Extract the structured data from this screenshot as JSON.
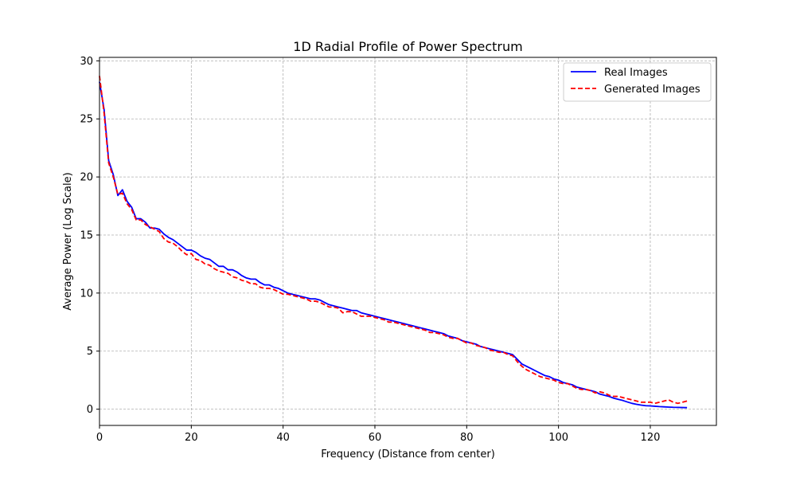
{
  "chart_data": {
    "type": "line",
    "title": "1D Radial Profile of Power Spectrum",
    "xlabel": "Frequency (Distance from center)",
    "ylabel": "Average Power (Log Scale)",
    "xlim": [
      0,
      134.4
    ],
    "ylim": [
      -1.4,
      30.3
    ],
    "xticks": [
      0,
      20,
      40,
      60,
      80,
      100,
      120
    ],
    "yticks": [
      0,
      5,
      10,
      15,
      20,
      25,
      30
    ],
    "grid": true,
    "legend_position": "top-right",
    "series": [
      {
        "name": "Real Images",
        "color": "#0000ff",
        "dash": "solid",
        "x": [
          0,
          1,
          2,
          3,
          4,
          5,
          6,
          7,
          8,
          9,
          10,
          11,
          12,
          13,
          14,
          15,
          16,
          17,
          18,
          19,
          20,
          21,
          22,
          23,
          24,
          25,
          26,
          27,
          28,
          29,
          30,
          31,
          32,
          33,
          34,
          35,
          36,
          37,
          38,
          39,
          40,
          41,
          42,
          43,
          44,
          45,
          46,
          47,
          48,
          49,
          50,
          51,
          52,
          53,
          54,
          55,
          56,
          57,
          58,
          59,
          60,
          61,
          62,
          63,
          64,
          65,
          66,
          67,
          68,
          69,
          70,
          71,
          72,
          73,
          74,
          75,
          76,
          77,
          78,
          79,
          80,
          81,
          82,
          83,
          84,
          85,
          86,
          87,
          88,
          89,
          90,
          91,
          92,
          93,
          94,
          95,
          96,
          97,
          98,
          99,
          100,
          101,
          102,
          103,
          104,
          105,
          106,
          107,
          108,
          109,
          110,
          111,
          112,
          113,
          114,
          115,
          116,
          117,
          118,
          119,
          120,
          121,
          122,
          123,
          124,
          125,
          126,
          127,
          128
        ],
        "y": [
          28.2,
          25.8,
          21.4,
          20.2,
          18.4,
          18.9,
          17.9,
          17.4,
          16.4,
          16.4,
          16.1,
          15.6,
          15.6,
          15.5,
          15.1,
          14.8,
          14.6,
          14.3,
          14.0,
          13.7,
          13.7,
          13.5,
          13.2,
          13.0,
          12.9,
          12.6,
          12.3,
          12.3,
          12.0,
          12.0,
          11.8,
          11.5,
          11.3,
          11.2,
          11.2,
          10.9,
          10.7,
          10.7,
          10.5,
          10.4,
          10.2,
          10.0,
          9.9,
          9.8,
          9.7,
          9.6,
          9.5,
          9.5,
          9.4,
          9.2,
          9.0,
          8.9,
          8.8,
          8.7,
          8.6,
          8.5,
          8.5,
          8.3,
          8.2,
          8.1,
          8.0,
          7.9,
          7.8,
          7.7,
          7.6,
          7.5,
          7.4,
          7.3,
          7.2,
          7.1,
          7.0,
          6.9,
          6.8,
          6.7,
          6.6,
          6.5,
          6.3,
          6.2,
          6.1,
          5.9,
          5.8,
          5.7,
          5.6,
          5.4,
          5.3,
          5.2,
          5.1,
          5.0,
          4.9,
          4.8,
          4.7,
          4.3,
          3.9,
          3.7,
          3.5,
          3.3,
          3.1,
          2.9,
          2.8,
          2.6,
          2.5,
          2.3,
          2.2,
          2.1,
          1.9,
          1.8,
          1.7,
          1.6,
          1.5,
          1.3,
          1.2,
          1.1,
          0.95,
          0.85,
          0.75,
          0.62,
          0.5,
          0.42,
          0.35,
          0.3,
          0.28,
          0.25,
          0.22,
          0.2,
          0.18,
          0.16,
          0.15,
          0.14,
          0.13
        ]
      },
      {
        "name": "Generated Images",
        "color": "#ff0000",
        "dash": "dashed",
        "x": [
          0,
          1,
          2,
          3,
          4,
          5,
          6,
          7,
          8,
          9,
          10,
          11,
          12,
          13,
          14,
          15,
          16,
          17,
          18,
          19,
          20,
          21,
          22,
          23,
          24,
          25,
          26,
          27,
          28,
          29,
          30,
          31,
          32,
          33,
          34,
          35,
          36,
          37,
          38,
          39,
          40,
          41,
          42,
          43,
          44,
          45,
          46,
          47,
          48,
          49,
          50,
          51,
          52,
          53,
          54,
          55,
          56,
          57,
          58,
          59,
          60,
          61,
          62,
          63,
          64,
          65,
          66,
          67,
          68,
          69,
          70,
          71,
          72,
          73,
          74,
          75,
          76,
          77,
          78,
          79,
          80,
          81,
          82,
          83,
          84,
          85,
          86,
          87,
          88,
          89,
          90,
          91,
          92,
          93,
          94,
          95,
          96,
          97,
          98,
          99,
          100,
          101,
          102,
          103,
          104,
          105,
          106,
          107,
          108,
          109,
          110,
          111,
          112,
          113,
          114,
          115,
          116,
          117,
          118,
          119,
          120,
          121,
          122,
          123,
          124,
          125,
          126,
          127,
          128
        ],
        "y": [
          28.7,
          25.5,
          21.2,
          20.0,
          18.5,
          18.6,
          17.7,
          17.2,
          16.3,
          16.3,
          15.9,
          15.7,
          15.5,
          15.3,
          14.7,
          14.4,
          14.3,
          14.0,
          13.6,
          13.3,
          13.4,
          12.9,
          12.8,
          12.5,
          12.4,
          12.1,
          11.9,
          11.8,
          11.7,
          11.4,
          11.3,
          11.1,
          11.0,
          10.8,
          10.8,
          10.5,
          10.4,
          10.4,
          10.3,
          10.1,
          9.9,
          9.9,
          9.8,
          9.7,
          9.6,
          9.5,
          9.3,
          9.3,
          9.2,
          9.0,
          8.8,
          8.8,
          8.7,
          8.3,
          8.4,
          8.4,
          8.2,
          8.0,
          8.0,
          8.0,
          7.9,
          7.8,
          7.7,
          7.5,
          7.5,
          7.4,
          7.3,
          7.2,
          7.1,
          7.0,
          6.9,
          6.8,
          6.6,
          6.6,
          6.5,
          6.4,
          6.2,
          6.1,
          6.1,
          5.9,
          5.7,
          5.7,
          5.5,
          5.4,
          5.3,
          5.1,
          5.0,
          4.9,
          4.9,
          4.7,
          4.6,
          4.1,
          3.7,
          3.4,
          3.2,
          3.0,
          2.8,
          2.7,
          2.6,
          2.5,
          2.3,
          2.2,
          2.2,
          2.0,
          1.8,
          1.7,
          1.7,
          1.6,
          1.4,
          1.5,
          1.4,
          1.2,
          1.1,
          1.1,
          1.0,
          0.9,
          0.8,
          0.7,
          0.6,
          0.6,
          0.6,
          0.5,
          0.6,
          0.7,
          0.8,
          0.6,
          0.5,
          0.6,
          0.7
        ]
      }
    ]
  }
}
